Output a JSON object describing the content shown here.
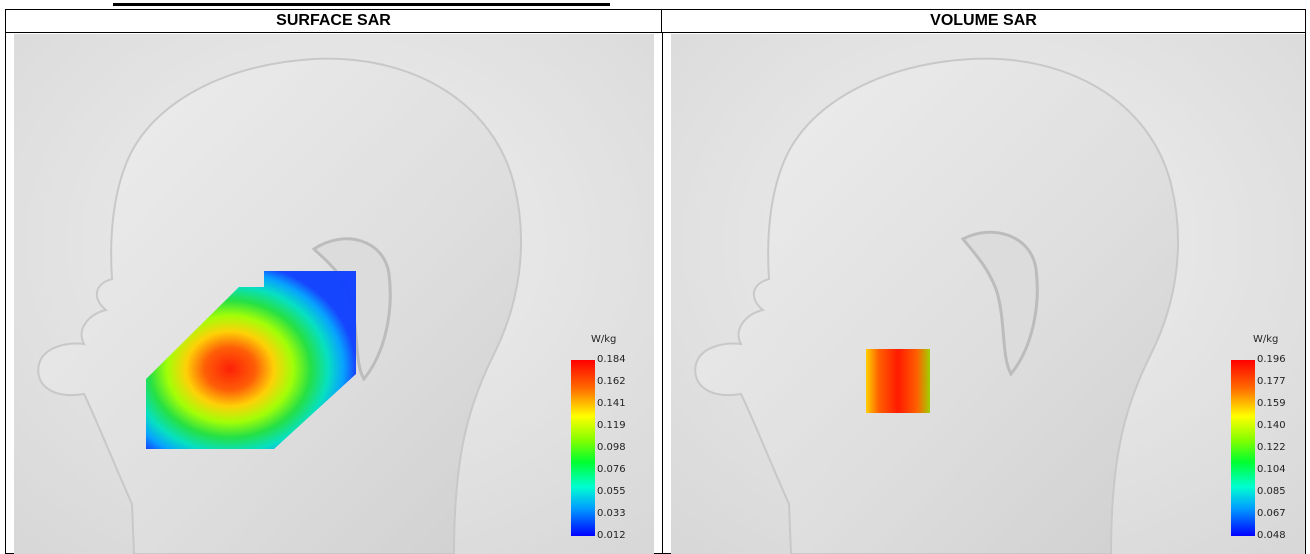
{
  "headers": {
    "surface": "SURFACE SAR",
    "volume": "VOLUME SAR"
  },
  "surface_legend": {
    "unit": "W/kg",
    "ticks": [
      "0.184",
      "0.162",
      "0.141",
      "0.119",
      "0.098",
      "0.076",
      "0.055",
      "0.033",
      "0.012"
    ]
  },
  "volume_legend": {
    "unit": "W/kg",
    "ticks": [
      "0.196",
      "0.177",
      "0.159",
      "0.140",
      "0.122",
      "0.104",
      "0.085",
      "0.067",
      "0.048"
    ]
  },
  "colors": {
    "max": "#ff0000",
    "min": "#0000ff",
    "background": "#e6e6e6"
  }
}
